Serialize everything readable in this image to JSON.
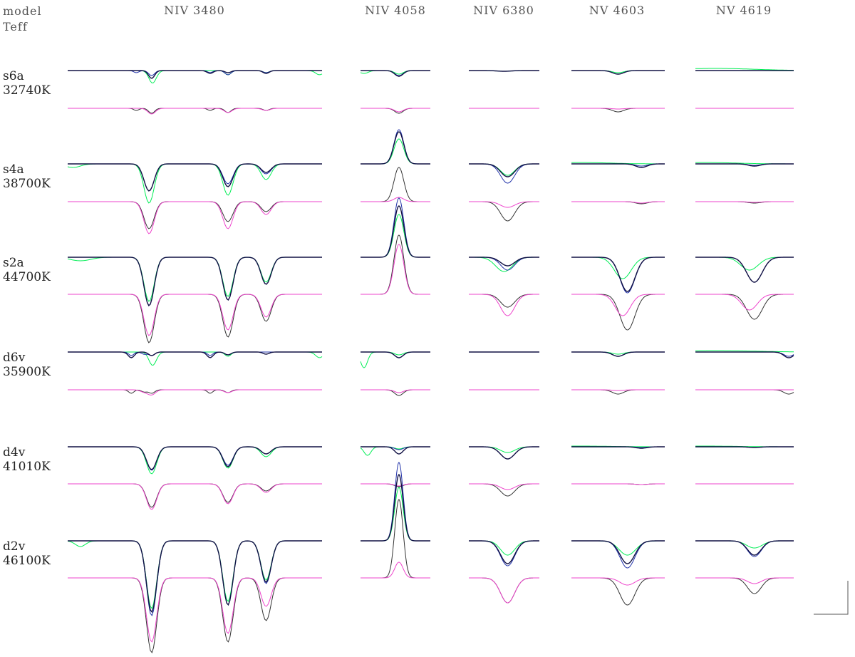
{
  "header": {
    "col0_line1": "model",
    "col0_line2": "Teff"
  },
  "chart_data": {
    "type": "line",
    "title": "",
    "xlabel": "",
    "ylabel": "",
    "grid": false,
    "colors": {
      "observed_a": "#00EE55",
      "model_a": "#2233AA",
      "model_dark": "#111144",
      "observed_b": "#EE44CC",
      "model_b": "#333333"
    },
    "columns": [
      {
        "label": "NIV 3480"
      },
      {
        "label": "NIV 4058"
      },
      {
        "label": "NIV 6380"
      },
      {
        "label": "NV 4603"
      },
      {
        "label": "NV 4619"
      }
    ],
    "models": [
      {
        "name": "s6a",
        "teff": "32740K"
      },
      {
        "name": "s4a",
        "teff": "38700K"
      },
      {
        "name": "s2a",
        "teff": "44700K"
      },
      {
        "name": "d6v",
        "teff": "35900K"
      },
      {
        "name": "d4v",
        "teff": "41010K"
      },
      {
        "name": "d2v",
        "teff": "46100K"
      }
    ]
  }
}
